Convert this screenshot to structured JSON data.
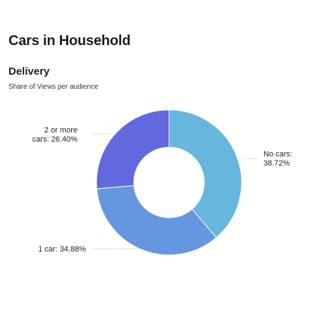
{
  "page": {
    "title": "Cars in Household"
  },
  "section": {
    "title": "Delivery",
    "subtitle": "Share of Views per audience"
  },
  "chart_data": {
    "type": "pie",
    "variant": "donut",
    "title": "Delivery",
    "subtitle": "Share of Views per audience",
    "slices": [
      {
        "label": "No cars",
        "value": 38.72,
        "display": [
          "No cars:",
          "38.72%"
        ],
        "color": "#66b6dd"
      },
      {
        "label": "1 car",
        "value": 34.88,
        "display": [
          "1 car: 34.88%"
        ],
        "color": "#6597e0"
      },
      {
        "label": "2 or more cars",
        "value": 26.4,
        "display": [
          "2 or more",
          "cars: 26.40%"
        ],
        "color": "#6468de"
      }
    ],
    "unit": "%",
    "start_angle": "top, clockwise"
  }
}
